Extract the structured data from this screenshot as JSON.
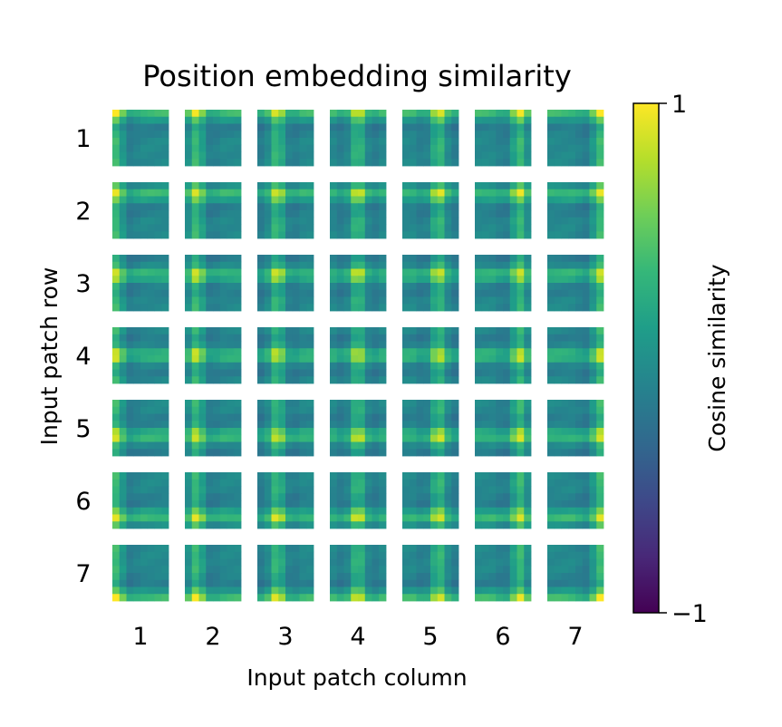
{
  "chart_data": {
    "type": "heatmap",
    "title": "Position embedding similarity",
    "xlabel": "Input patch column",
    "ylabel": "Input patch row",
    "rows": [
      "1",
      "2",
      "3",
      "4",
      "5",
      "6",
      "7"
    ],
    "columns": [
      "1",
      "2",
      "3",
      "4",
      "5",
      "6",
      "7"
    ],
    "tile_grid": 8,
    "value_range": [
      -1,
      1
    ],
    "colorbar": {
      "label": "Cosine similarity",
      "ticks": [
        1,
        -1
      ],
      "tick_labels": [
        "1",
        "−1"
      ],
      "colormap": "viridis"
    }
  },
  "colors": {
    "viridis": [
      "#440154",
      "#482878",
      "#3e4989",
      "#31688e",
      "#26828e",
      "#1f9e89",
      "#35b779",
      "#6ece58",
      "#b5de2b",
      "#fde725"
    ]
  }
}
